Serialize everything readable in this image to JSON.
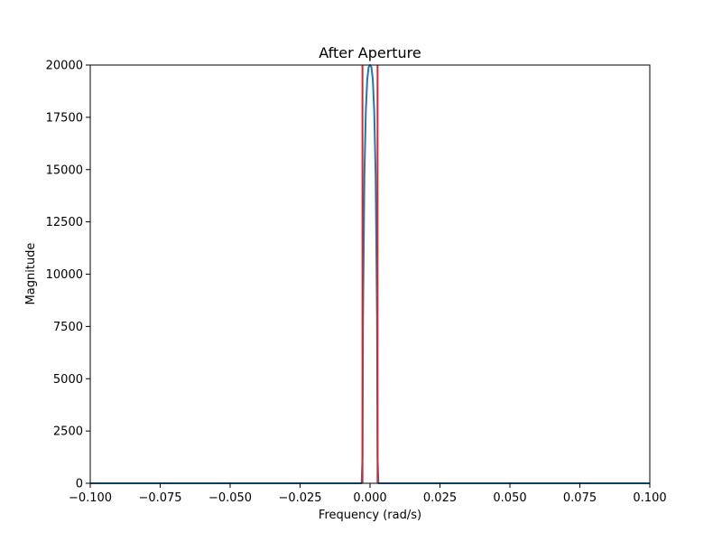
{
  "chart_data": {
    "type": "line",
    "title": "After Aperture",
    "xlabel": "Frequency (rad/s)",
    "ylabel": "Magnitude",
    "xlim": [
      -0.1,
      0.1
    ],
    "ylim": [
      0,
      20000
    ],
    "x_ticks": [
      -0.1,
      -0.075,
      -0.05,
      -0.025,
      0.0,
      0.025,
      0.05,
      0.075,
      0.1
    ],
    "x_tick_labels": [
      "−0.100",
      "−0.075",
      "−0.050",
      "−0.025",
      "0.000",
      "0.025",
      "0.050",
      "0.075",
      "0.100"
    ],
    "y_ticks": [
      0,
      2500,
      5000,
      7500,
      10000,
      12500,
      15000,
      17500,
      20000
    ],
    "y_tick_labels": [
      "0",
      "2500",
      "5000",
      "7500",
      "10000",
      "12500",
      "15000",
      "17500",
      "20000"
    ],
    "grid": false,
    "series": [
      {
        "color": "#1f77b4",
        "x": [
          -0.1,
          -0.003,
          -0.0027,
          -0.0025,
          -0.002,
          -0.0015,
          -0.001,
          -0.0005,
          0.0,
          0.0005,
          0.001,
          0.0015,
          0.002,
          0.0025,
          0.0027,
          0.003,
          0.1
        ],
        "y": [
          0,
          0,
          1200,
          8000,
          14800,
          17800,
          19300,
          19900,
          20000,
          19900,
          19300,
          17800,
          14800,
          8000,
          1200,
          0,
          0
        ]
      }
    ],
    "vertical_lines": [
      {
        "x": -0.0027,
        "color": "#d62728"
      },
      {
        "x": 0.0027,
        "color": "#d62728"
      }
    ]
  }
}
